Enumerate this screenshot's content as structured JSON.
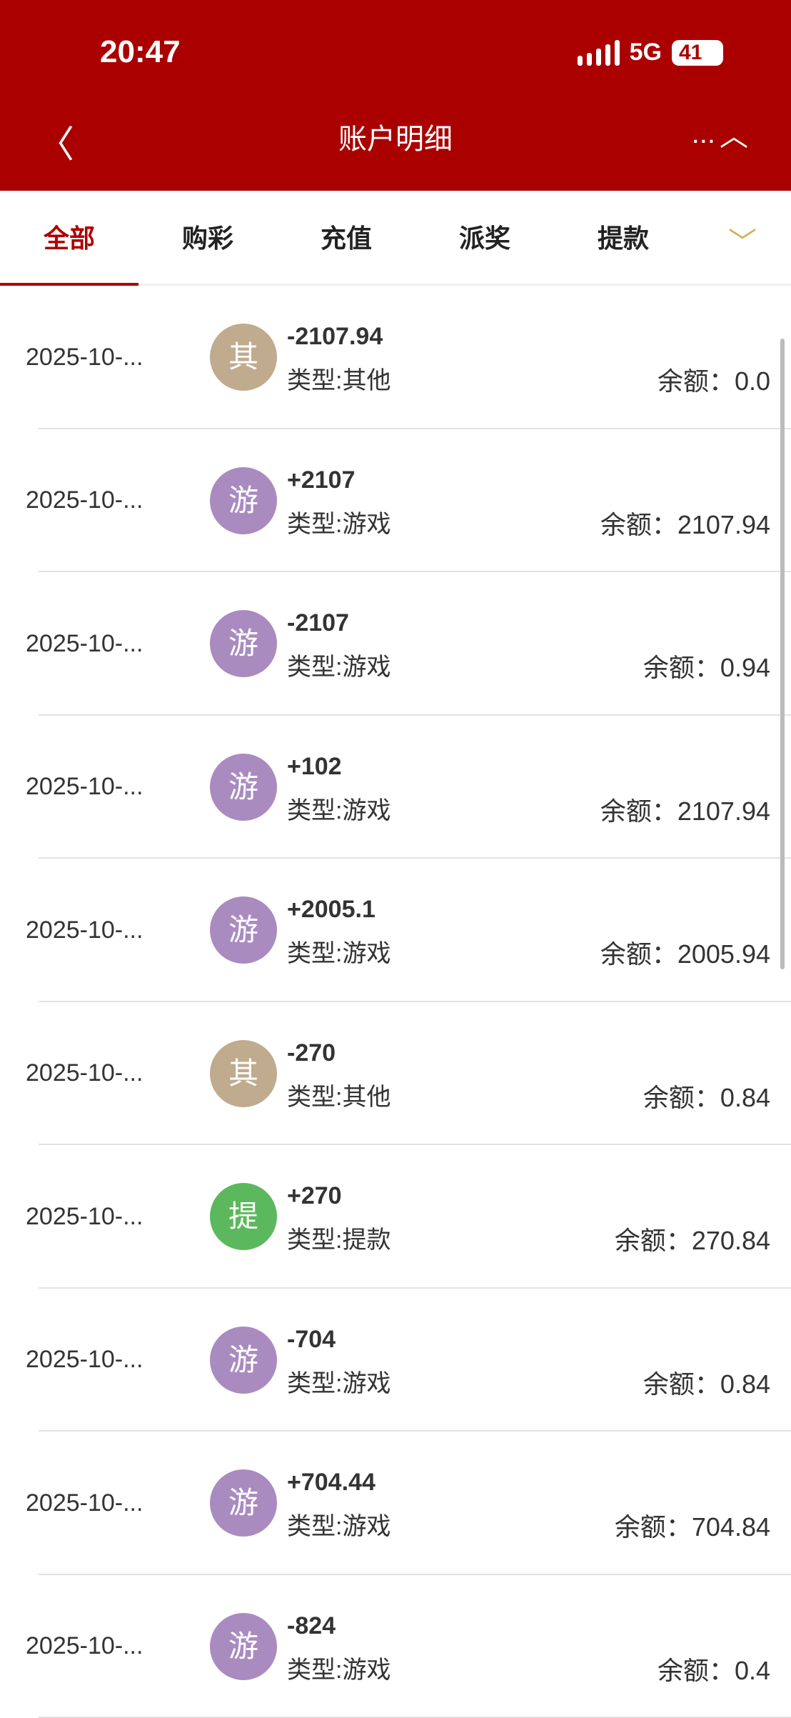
{
  "status": {
    "time": "20:47",
    "network": "5G",
    "battery": "41"
  },
  "header": {
    "title": "账户明细",
    "back_icon": "chevron-left",
    "more": "...",
    "collapse_icon": "chevron-up"
  },
  "tabs": [
    {
      "label": "全部",
      "active": true
    },
    {
      "label": "购彩"
    },
    {
      "label": "充值"
    },
    {
      "label": "派奖"
    },
    {
      "label": "提款"
    }
  ],
  "colors": {
    "header": "#AA0000",
    "other": "#C0AB8F",
    "game": "#A98BC0",
    "withdraw": "#5CB85C",
    "tab_dropdown": "#D4AF5A"
  },
  "balance_label": "余额：",
  "rows": [
    {
      "date": "2025-10-...",
      "icon": "其",
      "amount": "-2107.94",
      "type": "类型:其他",
      "balance": "0.0",
      "color": "#C0AB8F"
    },
    {
      "date": "2025-10-...",
      "icon": "游",
      "amount": "+2107",
      "type": "类型:游戏",
      "balance": "2107.94",
      "color": "#A98BC0"
    },
    {
      "date": "2025-10-...",
      "icon": "游",
      "amount": "-2107",
      "type": "类型:游戏",
      "balance": "0.94",
      "color": "#A98BC0"
    },
    {
      "date": "2025-10-...",
      "icon": "游",
      "amount": "+102",
      "type": "类型:游戏",
      "balance": "2107.94",
      "color": "#A98BC0"
    },
    {
      "date": "2025-10-...",
      "icon": "游",
      "amount": "+2005.1",
      "type": "类型:游戏",
      "balance": "2005.94",
      "color": "#A98BC0"
    },
    {
      "date": "2025-10-...",
      "icon": "其",
      "amount": "-270",
      "type": "类型:其他",
      "balance": "0.84",
      "color": "#C0AB8F"
    },
    {
      "date": "2025-10-...",
      "icon": "提",
      "amount": "+270",
      "type": "类型:提款",
      "balance": "270.84",
      "color": "#5CB85C"
    },
    {
      "date": "2025-10-...",
      "icon": "游",
      "amount": "-704",
      "type": "类型:游戏",
      "balance": "0.84",
      "color": "#A98BC0"
    },
    {
      "date": "2025-10-...",
      "icon": "游",
      "amount": "+704.44",
      "type": "类型:游戏",
      "balance": "704.84",
      "color": "#A98BC0"
    },
    {
      "date": "2025-10-...",
      "icon": "游",
      "amount": "-824",
      "type": "类型:游戏",
      "balance": "0.4",
      "color": "#A98BC0"
    }
  ]
}
